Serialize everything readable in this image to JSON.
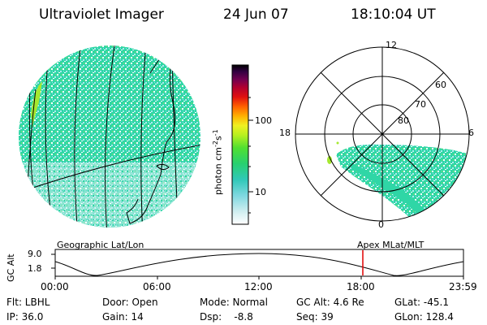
{
  "header": {
    "title": "Ultraviolet Imager",
    "date": "24 Jun 07",
    "time": "18:10:04 UT"
  },
  "colorbar": {
    "unit_label": "photon cm",
    "unit_exp1": "-2",
    "unit_s": "s",
    "unit_exp2": "-1",
    "ticks": [
      "100",
      "10"
    ]
  },
  "polar": {
    "mlt_labels": [
      "12",
      "18",
      "6",
      "0"
    ],
    "lat_labels": [
      "60",
      "70",
      "80"
    ]
  },
  "left_caption": "Geographic Lat/Lon",
  "right_caption": "Apex MLat/MLT",
  "alt_plot": {
    "ylabel": "GC Alt",
    "y_ticks": [
      "9.0",
      "1.8"
    ],
    "x_ticks": [
      "00:00",
      "06:00",
      "12:00",
      "18:00",
      "23:59"
    ],
    "marker_time": "18:10"
  },
  "footer": {
    "row1": [
      "Flt: LBHL",
      "Door: Open",
      "Mode: Normal",
      "GC Alt: 4.6 Re",
      "GLat: -45.1"
    ],
    "row2": [
      "IP: 36.0",
      "Gain: 14",
      "Dsp:    -8.8",
      "Seq: 39",
      "GLon: 128.4"
    ]
  },
  "colors": {
    "emission": "#2ed8a0",
    "emission_bright": "#a6e830",
    "marker": "#e00000"
  }
}
